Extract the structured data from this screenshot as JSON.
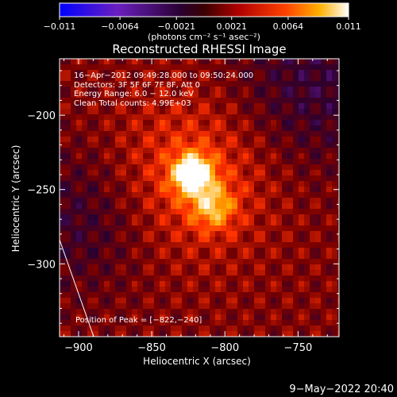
{
  "chart_data": {
    "type": "heatmap",
    "title": "Reconstructed RHESSI Image",
    "xlabel": "Heliocentric X (arcsec)",
    "ylabel": "Heliocentric Y (arcsec)",
    "xlim": [
      -913,
      -722
    ],
    "ylim": [
      -349,
      -162
    ],
    "x_ticks": [
      -900,
      -850,
      -800,
      -750
    ],
    "x_tick_labels": [
      "−900",
      "−850",
      "−800",
      "−750"
    ],
    "y_ticks": [
      -200,
      -250,
      -300
    ],
    "y_tick_labels": [
      "−200",
      "−250",
      "−300"
    ],
    "peak": {
      "x": -822,
      "y": -240
    },
    "colorbar": {
      "range": [
        -0.011,
        0.011
      ],
      "ticks": [
        -0.011,
        -0.0064,
        -0.0021,
        0.0021,
        0.0064,
        0.011
      ],
      "tick_labels": [
        "−0.011",
        "−0.0064",
        "−0.0021",
        "0.0021",
        "0.0064",
        "0.011"
      ],
      "unit_label": "(photons cm⁻² s⁻¹ asec⁻²)",
      "colors": [
        "#0000ff",
        "#7a1fb0",
        "#2a0030",
        "#7a0000",
        "#ff3000",
        "#ffaa00",
        "#ffffff"
      ]
    },
    "annotations": [
      "16−Apr−2012 09:49:28.000 to 09:50:24.000",
      "Detectors: 3F 5F 6F 7F 8F, Att 0",
      "Energy Range: 6.0 − 12.0 keV",
      "Clean     Total counts: 4.99E+03"
    ],
    "peak_label": "Position of Peak = [−822,−240]",
    "footer": "9−May−2022 20:40"
  }
}
